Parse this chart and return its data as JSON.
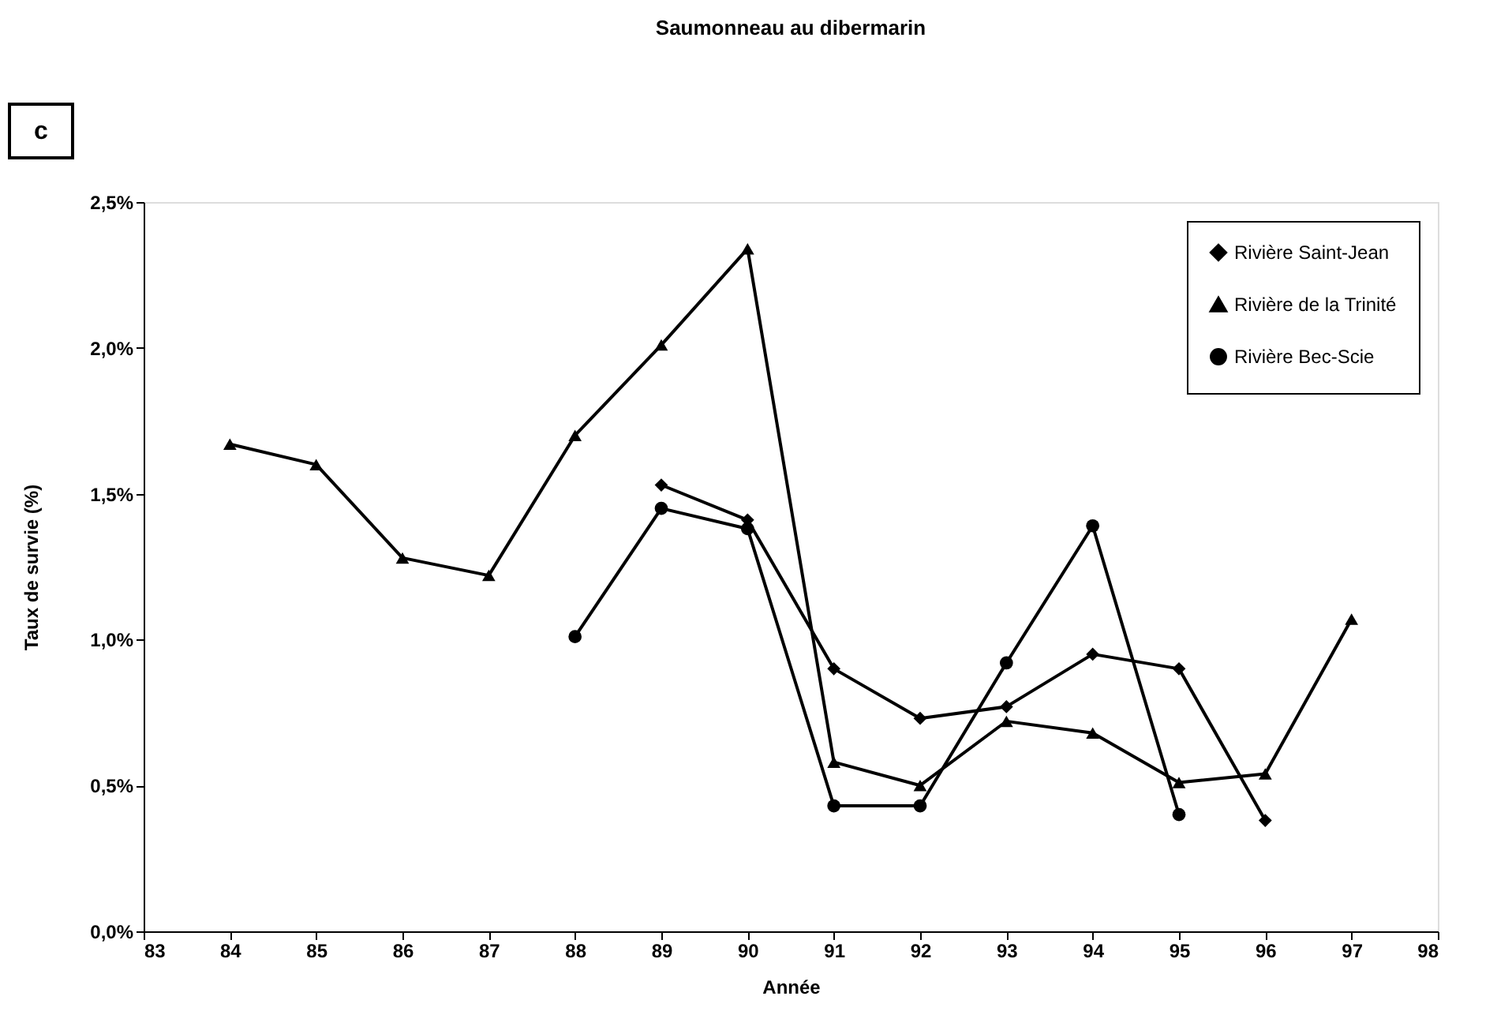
{
  "chart_data": {
    "type": "line",
    "title": "Saumonneau au dibermarin",
    "xlabel": "Année",
    "ylabel": "Taux de survie (%)",
    "annotations": [
      "c"
    ],
    "xlim": [
      83,
      98
    ],
    "xticks": [
      83,
      84,
      85,
      86,
      87,
      88,
      89,
      90,
      91,
      92,
      93,
      94,
      95,
      96,
      97,
      98
    ],
    "ylim": [
      0,
      2.5
    ],
    "yticks": [
      {
        "value": 0,
        "label": "0,0%"
      },
      {
        "value": 0.5,
        "label": "0,5%"
      },
      {
        "value": 1.0,
        "label": "1,0%"
      },
      {
        "value": 1.5,
        "label": "1,5%"
      },
      {
        "value": 2.0,
        "label": "2,0%"
      },
      {
        "value": 2.5,
        "label": "2,5%"
      }
    ],
    "grid": false,
    "legend": "top right",
    "series": [
      {
        "name": "Rivière Saint-Jean",
        "color": "#000000",
        "marker": "diamond",
        "x": [
          89,
          90,
          91,
          92,
          93,
          94,
          95,
          96
        ],
        "values": [
          1.53,
          1.41,
          0.9,
          0.73,
          0.77,
          0.95,
          0.9,
          0.38
        ]
      },
      {
        "name": "Rivière de la Trinité",
        "color": "#000000",
        "marker": "triangle",
        "x": [
          84,
          85,
          86,
          87,
          88,
          89,
          90,
          91,
          92,
          93,
          94,
          95,
          96,
          97
        ],
        "values": [
          1.67,
          1.6,
          1.28,
          1.22,
          1.7,
          2.01,
          2.34,
          0.58,
          0.5,
          0.72,
          0.68,
          0.51,
          0.54,
          1.07
        ]
      },
      {
        "name": "Rivière Bec-Scie",
        "color": "#000000",
        "marker": "circle",
        "x": [
          88,
          89,
          90,
          91,
          92,
          93,
          94,
          95
        ],
        "values": [
          1.01,
          1.45,
          1.38,
          0.43,
          0.43,
          0.92,
          1.39,
          0.4
        ]
      }
    ]
  }
}
